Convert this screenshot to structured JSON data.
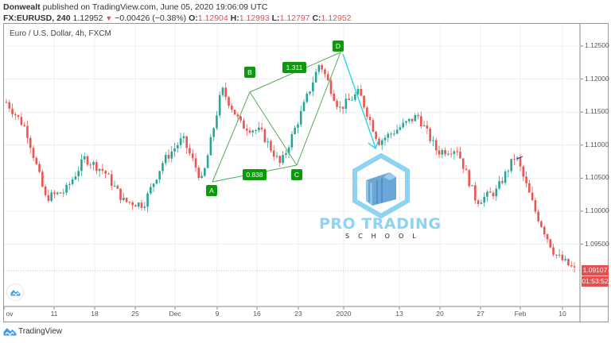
{
  "header": {
    "author": "Donwealt",
    "published_text": "published on TradingView.com, June 05, 2020 19:06:09 UTC",
    "symbol": "FX:EURUSD, 240",
    "last": "1.12952",
    "change_arrow": "▼",
    "change": "−0.00426 (−0.38%)",
    "o_label": "O:",
    "o_value": "1.12904",
    "h_label": "H:",
    "h_value": "1.12993",
    "l_label": "L:",
    "l_value": "1.12797",
    "c_label": "C:",
    "c_value": "1.12952"
  },
  "chart": {
    "title": "Euro / U.S. Dollar, 4h, FXCM",
    "current_price": "1.09107",
    "countdown": "01:53:52"
  },
  "pattern": {
    "points": [
      {
        "label": "A"
      },
      {
        "label": "B"
      },
      {
        "label": "C"
      },
      {
        "label": "D"
      }
    ],
    "ratio_ac": "0.838",
    "ratio_bd": "1.311"
  },
  "watermark": {
    "title": "PRO TRADING",
    "subtitle": "SCHOOL"
  },
  "footer": {
    "brand": "TradingView"
  },
  "colors": {
    "up": "#26a69a",
    "down": "#ef5350",
    "pattern": "#0a9a0a",
    "arrow": "#37d5e8",
    "price_tag": "#e25050"
  },
  "chart_data": {
    "type": "candlestick",
    "title": "Euro / U.S. Dollar, 4h, FXCM",
    "xlabel": "",
    "ylabel": "",
    "y_ticks": [
      "1.12500",
      "1.12000",
      "1.11500",
      "1.11000",
      "1.10500",
      "1.10000",
      "1.09500"
    ],
    "x_ticks": [
      "ov",
      "11",
      "18",
      "25",
      "Dec",
      "9",
      "16",
      "23",
      "2020",
      "13",
      "20",
      "27",
      "Feb",
      "10"
    ],
    "ylim": [
      1.0885,
      1.1275
    ],
    "grid": true,
    "approx_close_path": {
      "x": [
        "Nov 5",
        "Nov 8",
        "Nov 12",
        "Nov 15",
        "Nov 19",
        "Nov 22",
        "Nov 26",
        "Nov 29",
        "Dec 3",
        "Dec 6",
        "Dec 8",
        "Dec 13",
        "Dec 16",
        "Dec 20",
        "Dec 23",
        "Dec 27",
        "Dec 31",
        "Jan 3",
        "Jan 6",
        "Jan 9",
        "Jan 13",
        "Jan 16",
        "Jan 20",
        "Jan 23",
        "Jan 28",
        "Jan 31",
        "Feb 3",
        "Feb 7",
        "Feb 11",
        "Feb 12"
      ],
      "values": [
        1.1165,
        1.1125,
        1.102,
        1.103,
        1.108,
        1.106,
        1.1015,
        1.101,
        1.1075,
        1.111,
        1.1045,
        1.1185,
        1.113,
        1.112,
        1.107,
        1.1145,
        1.1225,
        1.1155,
        1.118,
        1.1105,
        1.1125,
        1.1145,
        1.109,
        1.1095,
        1.1015,
        1.103,
        1.1085,
        1.1,
        1.0935,
        1.0911
      ]
    },
    "pattern_points": [
      {
        "label": "A",
        "price": 1.1044
      },
      {
        "label": "B",
        "price": 1.1193
      },
      {
        "label": "C",
        "price": 1.107
      },
      {
        "label": "D",
        "price": 1.124
      }
    ],
    "pattern_ratios": {
      "AC": 0.838,
      "BD": 1.311
    },
    "last_price": 1.09107
  }
}
